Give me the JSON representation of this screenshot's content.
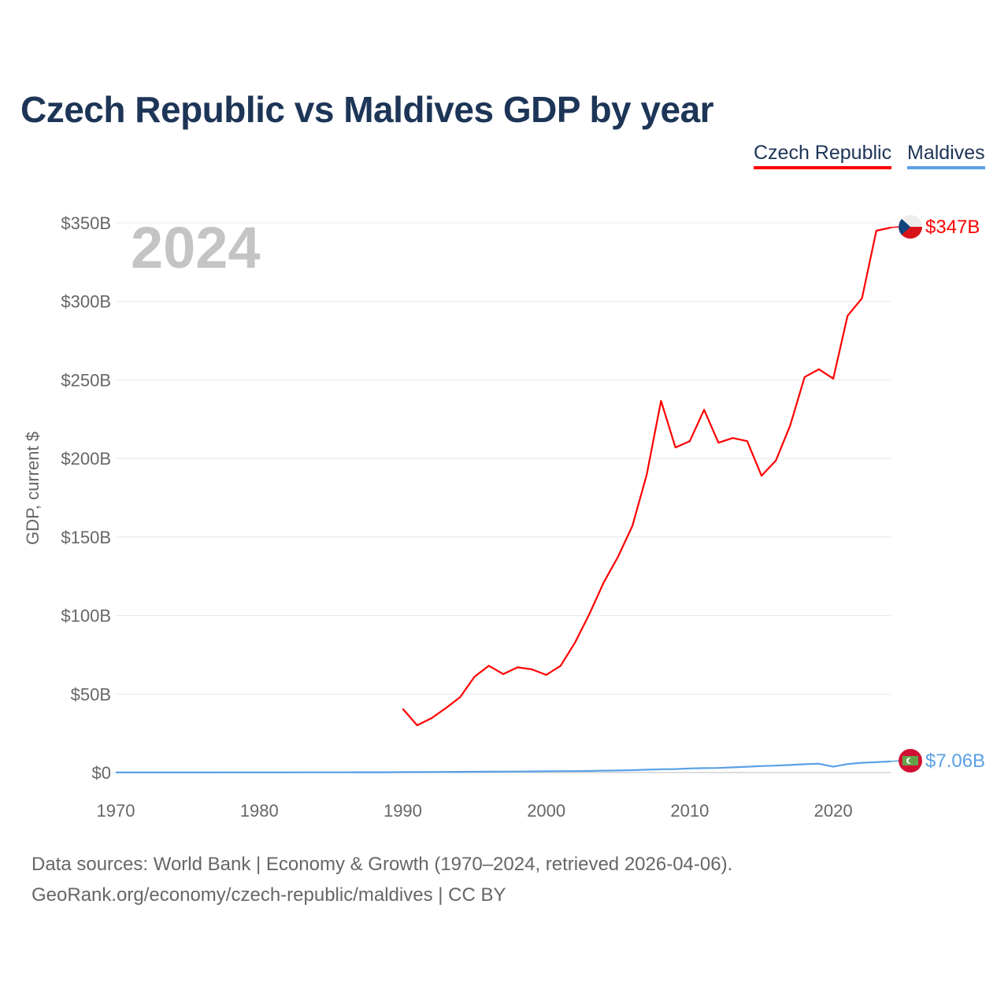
{
  "chart_data": {
    "type": "line",
    "title": "Czech Republic vs Maldives GDP by year",
    "xlabel": "",
    "ylabel": "GDP, current $",
    "xlim": [
      1970,
      2024
    ],
    "ylim": [
      0,
      350
    ],
    "x_ticks": [
      1970,
      1980,
      1990,
      2000,
      2010,
      2020
    ],
    "x_tick_labels": [
      "1970",
      "1980",
      "1990",
      "2000",
      "2010",
      "2020"
    ],
    "y_ticks": [
      0,
      50,
      100,
      150,
      200,
      250,
      300,
      350
    ],
    "y_tick_labels": [
      "$0",
      "$50B",
      "$100B",
      "$150B",
      "$200B",
      "$250B",
      "$300B",
      "$350B"
    ],
    "grid": true,
    "legend_position": "top-right",
    "year_label": "2024",
    "series": [
      {
        "name": "Czech Republic",
        "color": "#ff0000",
        "end_label": "$347B",
        "flag": "czech-flag",
        "x": [
          1990,
          1991,
          1992,
          1993,
          1994,
          1995,
          1996,
          1997,
          1998,
          1999,
          2000,
          2001,
          2002,
          2003,
          2004,
          2005,
          2006,
          2007,
          2008,
          2009,
          2010,
          2011,
          2012,
          2013,
          2014,
          2015,
          2016,
          2017,
          2018,
          2019,
          2020,
          2021,
          2022,
          2023,
          2024
        ],
        "values": [
          40.6,
          30.1,
          34.6,
          41,
          48,
          61,
          68,
          62.7,
          67,
          65.7,
          62.2,
          68,
          82.7,
          100.8,
          121,
          137.4,
          157,
          189.6,
          236.7,
          207,
          211,
          231,
          210,
          213,
          211,
          189,
          198.6,
          221,
          251.8,
          256.8,
          250.8,
          290.9,
          302,
          345,
          347
        ]
      },
      {
        "name": "Maldives",
        "color": "#5aa0e6",
        "end_label": "$7.06B",
        "flag": "maldives-flag",
        "x": [
          1970,
          1971,
          1972,
          1973,
          1974,
          1975,
          1976,
          1977,
          1978,
          1979,
          1980,
          1981,
          1982,
          1983,
          1984,
          1985,
          1986,
          1987,
          1988,
          1989,
          1990,
          1991,
          1992,
          1993,
          1994,
          1995,
          1996,
          1997,
          1998,
          1999,
          2000,
          2001,
          2002,
          2003,
          2004,
          2005,
          2006,
          2007,
          2008,
          2009,
          2010,
          2011,
          2012,
          2013,
          2014,
          2015,
          2016,
          2017,
          2018,
          2019,
          2020,
          2021,
          2022,
          2023,
          2024
        ],
        "values": [
          0.05,
          0.05,
          0.05,
          0.06,
          0.06,
          0.06,
          0.07,
          0.07,
          0.08,
          0.09,
          0.1,
          0.11,
          0.12,
          0.13,
          0.15,
          0.16,
          0.17,
          0.18,
          0.2,
          0.22,
          0.3,
          0.32,
          0.36,
          0.4,
          0.45,
          0.5,
          0.55,
          0.6,
          0.65,
          0.7,
          0.8,
          0.85,
          0.9,
          1.0,
          1.2,
          1.3,
          1.5,
          1.8,
          2.1,
          2.2,
          2.6,
          2.8,
          2.9,
          3.3,
          3.7,
          4.1,
          4.4,
          4.8,
          5.3,
          5.6,
          3.7,
          5.4,
          6.2,
          6.6,
          7.06
        ]
      }
    ]
  },
  "footer": {
    "line1": "Data sources: World Bank | Economy & Growth (1970–2024, retrieved 2026-04-06).",
    "line2": "GeoRank.org/economy/czech-republic/maldives | CC BY"
  }
}
